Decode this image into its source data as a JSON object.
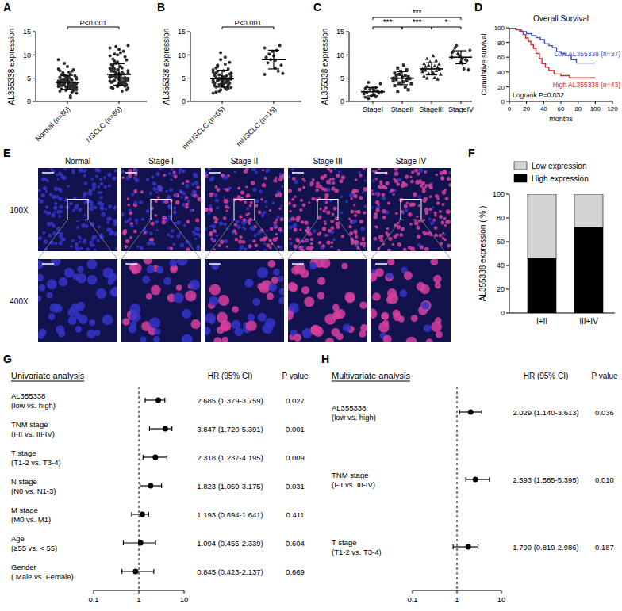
{
  "panel_labels": [
    "A",
    "B",
    "C",
    "D",
    "E",
    "F",
    "G",
    "H"
  ],
  "chart_data": [
    {
      "type": "dot_plot",
      "ylabel": "AL355338 expression",
      "ylim": [
        0,
        15
      ],
      "yticks": [
        0,
        5,
        10,
        15
      ],
      "comparisons": [
        {
          "from": 0,
          "to": 1,
          "text": "P<0.001"
        }
      ],
      "series": [
        {
          "name": "Normal (n=80)",
          "marker": "circle",
          "color": "#2b2b2b",
          "mean": 4.1,
          "sd": 1.5,
          "values": [
            4.2,
            3.8,
            5.1,
            2.9,
            4.5,
            3.3,
            6.2,
            4.0,
            3.6,
            5.5,
            2.4,
            4.8,
            3.1,
            7.0,
            4.3,
            3.9,
            5.8,
            2.7,
            4.6,
            3.5,
            6.8,
            4.1,
            3.2,
            5.0,
            1.8,
            4.4,
            3.7,
            5.3,
            2.2,
            4.9,
            3.4,
            6.5,
            4.0,
            3.0,
            5.6,
            2.6,
            4.7,
            3.8,
            7.5,
            4.2,
            3.3,
            5.2,
            1.2,
            4.5,
            3.6,
            6.0,
            2.9,
            4.1,
            3.9,
            5.4,
            2.5,
            4.8,
            3.2,
            6.3,
            4.3,
            3.5,
            5.7,
            2.0,
            4.6,
            3.7,
            8.2,
            4.0,
            3.1,
            5.1,
            2.8,
            4.4,
            3.8,
            6.6,
            0.8,
            4.2,
            3.4,
            5.9,
            2.3,
            4.7,
            3.6,
            5.0,
            3.0,
            4.1,
            9.0,
            3.9
          ]
        },
        {
          "name": "NSCLC (n=80)",
          "marker": "circle",
          "color": "#2b2b2b",
          "mean": 5.8,
          "sd": 2.3,
          "values": [
            5.2,
            4.8,
            6.5,
            3.9,
            7.8,
            5.0,
            10.2,
            4.4,
            5.6,
            8.9,
            3.2,
            6.1,
            4.7,
            11.5,
            5.3,
            4.1,
            7.2,
            2.8,
            5.9,
            4.5,
            9.6,
            5.1,
            3.6,
            6.8,
            12.0,
            4.9,
            5.4,
            7.5,
            3.0,
            6.3,
            4.3,
            10.8,
            5.5,
            4.0,
            8.2,
            2.5,
            5.8,
            4.6,
            11.2,
            5.2,
            3.8,
            6.9,
            4.2,
            9.1,
            5.0,
            7.0,
            3.4,
            5.7,
            4.8,
            8.5,
            2.9,
            6.0,
            4.4,
            10.5,
            5.4,
            3.7,
            7.4,
            4.1,
            6.4,
            5.1,
            11.8,
            4.7,
            3.5,
            6.6,
            5.3,
            9.8,
            4.5,
            7.9,
            2.2,
            5.6,
            4.2,
            8.7,
            3.3,
            6.2,
            4.9,
            10.0,
            5.0,
            3.9,
            7.1,
            5.5
          ]
        }
      ]
    },
    {
      "type": "dot_plot",
      "ylabel": "AL355338 expression",
      "ylim": [
        0,
        15
      ],
      "yticks": [
        0,
        5,
        10,
        15
      ],
      "comparisons": [
        {
          "from": 0,
          "to": 1,
          "text": "P<0.001"
        }
      ],
      "series": [
        {
          "name": "nmNSCLC (n=65)",
          "marker": "circle",
          "color": "#2b2b2b",
          "mean": 4.9,
          "sd": 1.8,
          "values": [
            4.5,
            3.8,
            5.6,
            2.9,
            6.2,
            4.1,
            7.5,
            3.3,
            5.0,
            8.4,
            2.5,
            4.8,
            3.6,
            6.8,
            5.2,
            4.0,
            9.5,
            3.1,
            5.5,
            4.4,
            7.0,
            2.2,
            4.9,
            3.7,
            6.0,
            5.3,
            1.8,
            4.6,
            3.4,
            8.0,
            5.1,
            4.2,
            6.5,
            2.8,
            4.7,
            3.9,
            10.5,
            5.4,
            4.3,
            6.3,
            3.2,
            5.8,
            4.0,
            7.2,
            2.6,
            4.5,
            3.5,
            5.7,
            4.8,
            9.0,
            3.0,
            5.0,
            4.1,
            6.6,
            3.8,
            5.3,
            2.0,
            4.6,
            7.8,
            4.4,
            3.6,
            5.9,
            4.9,
            6.1,
            3.3
          ]
        },
        {
          "name": "mNSCLC (n=15)",
          "marker": "circle",
          "color": "#2b2b2b",
          "mean": 9.0,
          "sd": 2.0,
          "values": [
            5.8,
            7.2,
            9.5,
            11.0,
            8.3,
            6.5,
            10.2,
            12.0,
            9.0,
            7.8,
            10.8,
            6.0,
            9.8,
            11.5,
            8.8
          ]
        }
      ]
    },
    {
      "type": "dot_plot",
      "ylabel": "AL355338 expression",
      "ylim": [
        0,
        15
      ],
      "yticks": [
        0,
        5,
        10,
        15
      ],
      "comparisons": [
        {
          "from": 0,
          "to": 1,
          "text": "***"
        },
        {
          "from": 1,
          "to": 2,
          "text": "***"
        },
        {
          "from": 2,
          "to": 3,
          "text": "*"
        },
        {
          "from": 0,
          "to": 3,
          "text": "***"
        }
      ],
      "series": [
        {
          "name": "StageI",
          "marker": "circle",
          "color": "#2b2b2b",
          "mean": 2.1,
          "sd": 0.9,
          "values": [
            2.0,
            1.5,
            2.8,
            1.0,
            3.2,
            2.3,
            0.6,
            1.8,
            2.6,
            3.8,
            1.2,
            2.1,
            2.9,
            1.6,
            2.4,
            0.9,
            3.0,
            1.9,
            2.2,
            4.1
          ]
        },
        {
          "name": "StageII",
          "marker": "square",
          "color": "#2b2b2b",
          "mean": 5.0,
          "sd": 1.4,
          "values": [
            5.0,
            4.2,
            6.1,
            3.1,
            5.5,
            4.6,
            7.2,
            2.5,
            5.8,
            4.9,
            6.5,
            3.8,
            5.2,
            4.4,
            7.8,
            3.4,
            5.6,
            4.7,
            6.8,
            2.2,
            5.3,
            4.0
          ]
        },
        {
          "name": "StageIII",
          "marker": "triangle",
          "color": "#2b2b2b",
          "mean": 7.0,
          "sd": 1.3,
          "values": [
            7.0,
            6.2,
            8.1,
            5.1,
            7.5,
            6.6,
            9.2,
            4.8,
            7.8,
            6.9,
            8.5,
            5.8,
            7.2,
            6.4,
            9.8,
            5.4,
            7.6,
            6.7,
            8.8,
            5.0,
            7.3,
            6.0,
            8.0
          ]
        },
        {
          "name": "StageIV",
          "marker": "diamond",
          "color": "#2b2b2b",
          "mean": 9.5,
          "sd": 1.4,
          "values": [
            9.5,
            8.2,
            10.8,
            7.0,
            11.5,
            9.0,
            12.0,
            8.8,
            10.2,
            6.8,
            9.8,
            11.0,
            8.5,
            10.5,
            9.2
          ]
        }
      ]
    },
    {
      "type": "line",
      "title": "Overall Survival",
      "xlabel": "months",
      "ylabel": "Cumulative survival",
      "annotation": "Logrank P=0.032",
      "xlim": [
        0,
        120
      ],
      "xticks": [
        0,
        20,
        40,
        60,
        80,
        100,
        120
      ],
      "ylim": [
        0,
        100
      ],
      "yticks": [
        0,
        20,
        40,
        60,
        80,
        100
      ],
      "series": [
        {
          "name": "Low AL355338 (n=37)",
          "color": "#3a4fc2",
          "line_style": "step",
          "x": [
            0,
            8,
            14,
            20,
            26,
            31,
            36,
            41,
            46,
            50,
            55,
            61,
            66,
            72,
            78,
            100
          ],
          "values": [
            100,
            97.3,
            94.6,
            91.9,
            89.2,
            86.5,
            83.8,
            78.4,
            75.7,
            73,
            67.6,
            64.9,
            62.2,
            56.8,
            52,
            52
          ]
        },
        {
          "name": "High AL355338 (n=43)",
          "color": "#d9262b",
          "line_style": "step",
          "x": [
            0,
            7,
            12,
            16,
            19,
            22,
            25,
            28,
            31,
            35,
            38,
            42,
            46,
            52,
            60,
            70,
            100
          ],
          "values": [
            100,
            97.7,
            95.3,
            90.7,
            86,
            81.4,
            76.7,
            72.1,
            65,
            58,
            51.2,
            46.5,
            41.9,
            37.2,
            34.9,
            32,
            32
          ]
        }
      ]
    },
    {
      "type": "image",
      "columns": [
        "Normal",
        "Stage I",
        "Stage II",
        "Stage III",
        "Stage IV"
      ],
      "rows": [
        "100X",
        "400X"
      ]
    },
    {
      "type": "bar",
      "stacked": true,
      "ylabel": "AL355338 expression ( % )",
      "ylim": [
        0,
        100
      ],
      "yticks": [
        0,
        20,
        40,
        60,
        80,
        100
      ],
      "categories": [
        "I+II",
        "III+IV"
      ],
      "series": [
        {
          "name": "High expression",
          "color": "#000000",
          "values": [
            46,
            72
          ]
        },
        {
          "name": "Low expression",
          "color": "#d3d3d3",
          "values": [
            54,
            28
          ]
        }
      ]
    },
    {
      "type": "forest",
      "title": "Univariate analysis",
      "log": "x",
      "xlim": [
        0.1,
        10
      ],
      "xticks": [
        0.1,
        1,
        10
      ],
      "reference_line": 1,
      "headers": [
        "HR (95% CI)",
        "P value"
      ],
      "categories": [
        "AL355338",
        "TNM stage",
        "T stage",
        "N stage",
        "M stage",
        "Age",
        "Gender"
      ],
      "category_details": [
        "(low vs. high)",
        "(I-II vs. III-IV)",
        "(T1-2 vs. T3-4)",
        "(N0 vs. N1-3)",
        "(M0 vs. M1)",
        "(≥55 vs. < 55)",
        "( Male vs. Female)"
      ],
      "values": [
        2.685,
        3.847,
        2.318,
        1.823,
        1.193,
        1.094,
        0.845
      ],
      "lower": [
        1.379,
        1.72,
        1.237,
        1.059,
        0.694,
        0.455,
        0.423
      ],
      "upper": [
        3.759,
        5.391,
        4.195,
        3.175,
        1.641,
        2.339,
        2.137
      ],
      "value_labels": [
        "2.685 (1.379-3.759)",
        "3.847 (1.720-5.391)",
        "2.318 (1.237-4.195)",
        "1.823 (1.059-3.175)",
        "1.193 (0.694-1.641)",
        "1.094 (0.455-2.339)",
        "0.845 (0.423-2.137)"
      ],
      "p_values": [
        "0.027",
        "0.001",
        "0.009",
        "0.031",
        "0.411",
        "0.604",
        "0.669"
      ]
    },
    {
      "type": "forest",
      "title": "Multivariate analysis",
      "log": "x",
      "xlim": [
        0.1,
        10
      ],
      "xticks": [
        0.1,
        1,
        10
      ],
      "reference_line": 1,
      "headers": [
        "HR (95% CI)",
        "P value"
      ],
      "categories": [
        "AL355338",
        "TNM stage",
        "T stage"
      ],
      "category_details": [
        "(low vs. high)",
        "(I-II vs. III-IV)",
        "(T1-2 vs. T3-4)"
      ],
      "values": [
        2.029,
        2.593,
        1.79
      ],
      "lower": [
        1.14,
        1.585,
        0.819
      ],
      "upper": [
        3.613,
        5.395,
        2.986
      ],
      "value_labels": [
        "2.029 (1.140-3.613)",
        "2.593 (1.585-5.395)",
        "1.790 (0.819-2.986)"
      ],
      "p_values": [
        "0.036",
        "0.010",
        "0.187"
      ]
    }
  ]
}
